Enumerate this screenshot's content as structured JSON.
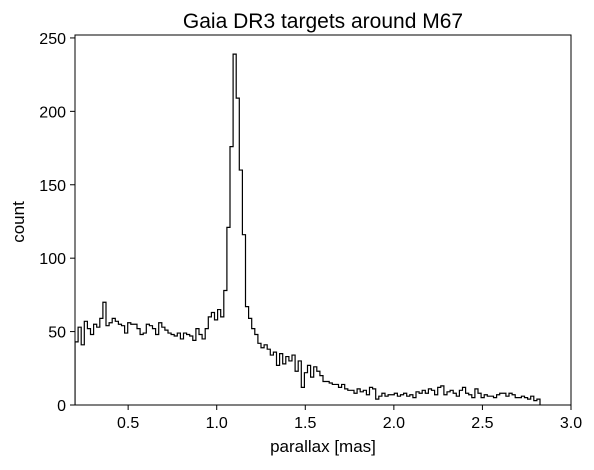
{
  "chart_data": {
    "type": "histogram",
    "title": "Gaia DR3 targets around M67",
    "xlabel": "parallax [mas]",
    "ylabel": "count",
    "xlim": [
      0.2,
      3.0
    ],
    "ylim": [
      0,
      252
    ],
    "x_ticks": [
      0.5,
      1.0,
      1.5,
      2.0,
      2.5,
      3.0
    ],
    "x_tick_labels": [
      "0.5",
      "1.0",
      "1.5",
      "2.0",
      "2.5",
      "3.0"
    ],
    "y_ticks": [
      0,
      50,
      100,
      150,
      200,
      250
    ],
    "y_tick_labels": [
      "0",
      "50",
      "100",
      "150",
      "200",
      "250"
    ],
    "bin_start": 0.2,
    "bin_width": 0.0175,
    "counts": [
      43,
      53,
      41,
      57,
      52,
      48,
      55,
      53,
      59,
      70,
      54,
      56,
      59,
      57,
      55,
      54,
      49,
      56,
      55,
      55,
      52,
      48,
      49,
      55,
      54,
      52,
      48,
      56,
      53,
      51,
      49,
      48,
      47,
      49,
      45,
      49,
      48,
      47,
      44,
      52,
      48,
      45,
      52,
      60,
      63,
      58,
      65,
      60,
      78,
      121,
      176,
      239,
      209,
      160,
      116,
      67,
      59,
      52,
      48,
      42,
      39,
      41,
      38,
      34,
      36,
      27,
      35,
      28,
      33,
      30,
      34,
      23,
      30,
      12,
      22,
      27,
      19,
      26,
      23,
      20,
      16,
      16,
      15,
      14,
      14,
      12,
      14,
      11,
      10,
      10,
      8,
      11,
      9,
      10,
      7,
      12,
      11,
      4,
      6,
      8,
      6,
      7,
      7,
      8,
      6,
      7,
      8,
      6,
      7,
      5,
      9,
      8,
      10,
      8,
      11,
      10,
      7,
      12,
      13,
      7,
      9,
      10,
      8,
      6,
      10,
      12,
      8,
      7,
      5,
      11,
      8,
      5,
      7,
      6,
      6,
      5,
      7,
      8,
      8,
      6,
      8,
      7,
      5,
      5,
      6,
      5,
      4,
      6,
      3,
      4
    ],
    "line_color": "#000000",
    "grid": false,
    "legend": "none"
  }
}
